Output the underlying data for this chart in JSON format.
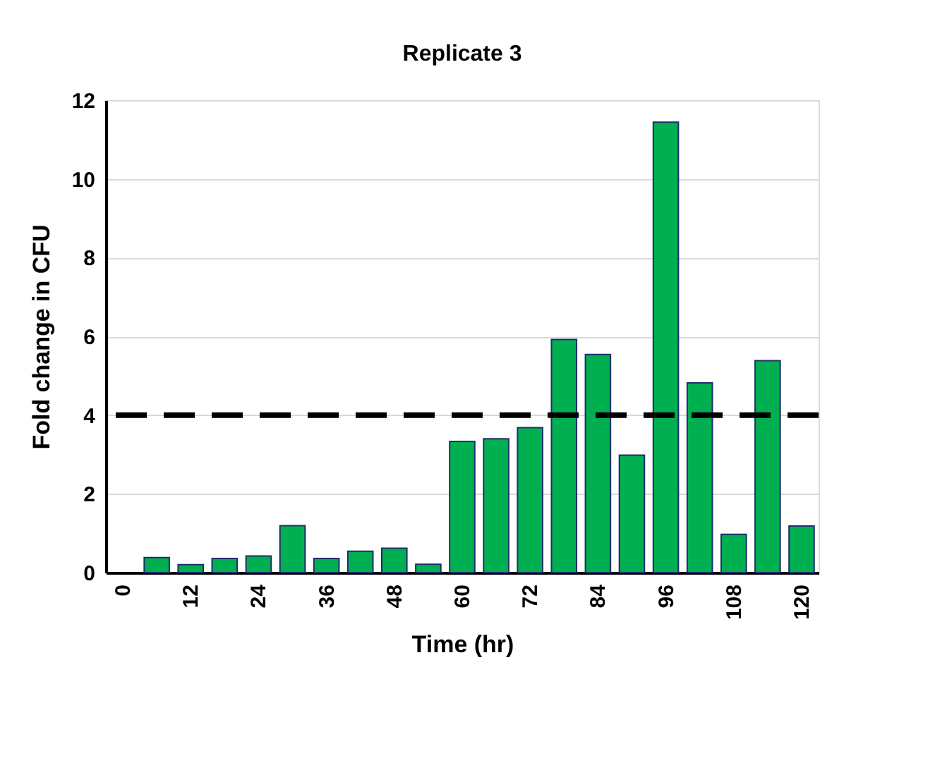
{
  "chart_data": {
    "type": "bar",
    "title": "Replicate 3",
    "xlabel": "Time (hr)",
    "ylabel": "Fold change in CFU",
    "categories": [
      "0",
      null,
      "12",
      null,
      "24",
      null,
      "36",
      null,
      "48",
      null,
      "60",
      null,
      "72",
      null,
      "84",
      null,
      "96",
      null,
      "108",
      null,
      "120"
    ],
    "values": [
      null,
      0.38,
      0.2,
      0.36,
      0.42,
      1.19,
      0.36,
      0.54,
      0.62,
      0.21,
      3.33,
      3.4,
      3.68,
      5.92,
      5.54,
      2.98,
      11.44,
      4.82,
      0.97,
      5.38,
      1.18
    ],
    "color": "#00b050",
    "ylim": [
      0,
      12
    ],
    "yticks": [
      0,
      2,
      4,
      6,
      8,
      10,
      12
    ],
    "grid": "y",
    "ref_lines": [
      {
        "axis": "y",
        "value": 4,
        "color": "#000000",
        "line_style": "dashed"
      }
    ]
  }
}
